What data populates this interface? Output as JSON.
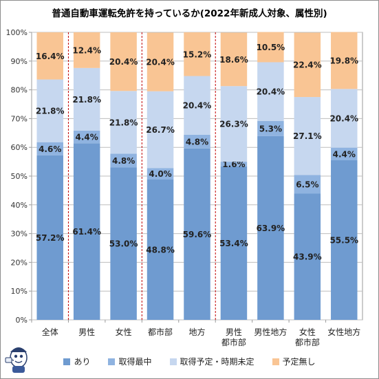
{
  "chart_data": {
    "type": "bar",
    "stacked": true,
    "title": "普通自動車運転免許を持っているか(2022年新成人対象、属性別)",
    "categories": [
      [
        "全体"
      ],
      [
        "男性"
      ],
      [
        "女性"
      ],
      [
        "都市部"
      ],
      [
        "地方"
      ],
      [
        "男性",
        "都市部"
      ],
      [
        "男性地方"
      ],
      [
        "女性",
        "都市部"
      ],
      [
        "女性地方"
      ]
    ],
    "series": [
      {
        "name": "あり",
        "color": "#6f9bd0",
        "values": [
          57.2,
          61.4,
          53.0,
          48.8,
          59.6,
          53.4,
          63.9,
          43.9,
          55.5
        ]
      },
      {
        "name": "取得最中",
        "color": "#8fb3e0",
        "values": [
          4.6,
          4.4,
          4.8,
          4.0,
          4.8,
          1.6,
          5.3,
          6.5,
          4.4
        ]
      },
      {
        "name": "取得予定・時期未定",
        "color": "#c6d7ef",
        "values": [
          21.8,
          21.8,
          21.8,
          26.7,
          20.4,
          26.3,
          20.4,
          27.1,
          20.4
        ]
      },
      {
        "name": "予定無し",
        "color": "#f9c594",
        "values": [
          16.4,
          12.4,
          20.4,
          20.4,
          15.2,
          18.6,
          10.5,
          22.4,
          19.8
        ]
      }
    ],
    "ylim": [
      0,
      100
    ],
    "yticks": [
      "0%",
      "10%",
      "20%",
      "30%",
      "40%",
      "50%",
      "60%",
      "70%",
      "80%",
      "90%",
      "100%"
    ],
    "separators_after": [
      0,
      2,
      4
    ],
    "grid": true,
    "legend": "bottom"
  }
}
